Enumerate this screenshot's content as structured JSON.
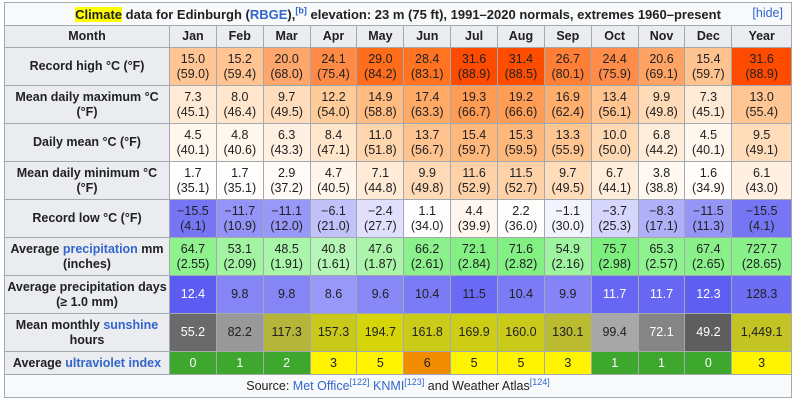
{
  "caption": {
    "highlight": "Climate",
    "text_before_link": " data for Edinburgh (",
    "link": "RBGE",
    "text_after_link": "),",
    "sup": "[b]",
    "text_rest": " elevation: 23 m (75 ft), 1991–2020 normals, extremes 1960–present",
    "hide": "[hide]"
  },
  "columns": [
    "Month",
    "Jan",
    "Feb",
    "Mar",
    "Apr",
    "May",
    "Jun",
    "Jul",
    "Aug",
    "Sep",
    "Oct",
    "Nov",
    "Dec",
    "Year"
  ],
  "rows": [
    {
      "label": "Record high °C (°F)",
      "link": "",
      "type": "two",
      "cells": [
        [
          "15.0",
          "(59.0)"
        ],
        [
          "15.2",
          "(59.4)"
        ],
        [
          "20.0",
          "(68.0)"
        ],
        [
          "24.1",
          "(75.4)"
        ],
        [
          "29.0",
          "(84.2)"
        ],
        [
          "28.4",
          "(83.1)"
        ],
        [
          "31.6",
          "(88.9)"
        ],
        [
          "31.4",
          "(88.5)"
        ],
        [
          "26.7",
          "(80.1)"
        ],
        [
          "24.4",
          "(75.9)"
        ],
        [
          "20.6",
          "(69.1)"
        ],
        [
          "15.4",
          "(59.7)"
        ],
        [
          "31.6",
          "(88.9)"
        ]
      ],
      "colors": [
        "#ffc594",
        "#ffc491",
        "#ffa66c",
        "#ff8a46",
        "#ff6d1a",
        "#ff7321",
        "#ff4b00",
        "#ff4d00",
        "#ff7f36",
        "#ff8c49",
        "#ffa364",
        "#ffc38f",
        "#ff4b00"
      ],
      "dark": [
        false,
        false,
        false,
        false,
        false,
        false,
        false,
        false,
        false,
        false,
        false,
        false,
        false
      ]
    },
    {
      "label": "Mean daily maximum °C (°F)",
      "link": "",
      "type": "two",
      "cells": [
        [
          "7.3",
          "(45.1)"
        ],
        [
          "8.0",
          "(46.4)"
        ],
        [
          "9.7",
          "(49.5)"
        ],
        [
          "12.2",
          "(54.0)"
        ],
        [
          "14.9",
          "(58.8)"
        ],
        [
          "17.4",
          "(63.3)"
        ],
        [
          "19.3",
          "(66.7)"
        ],
        [
          "19.2",
          "(66.6)"
        ],
        [
          "16.9",
          "(62.4)"
        ],
        [
          "13.4",
          "(56.1)"
        ],
        [
          "9.9",
          "(49.8)"
        ],
        [
          "7.3",
          "(45.1)"
        ],
        [
          "13.0",
          "(55.4)"
        ]
      ],
      "colors": [
        "#ffead5",
        "#ffe6cc",
        "#ffdcbb",
        "#ffcc99",
        "#ffbb80",
        "#ffaa66",
        "#ff9b53",
        "#ff9c55",
        "#ffae6c",
        "#ffc48f",
        "#ffdab7",
        "#ffead5",
        "#ffc694"
      ],
      "dark": [
        false,
        false,
        false,
        false,
        false,
        false,
        false,
        false,
        false,
        false,
        false,
        false,
        false
      ]
    },
    {
      "label": "Daily mean °C (°F)",
      "link": "",
      "type": "two",
      "cells": [
        [
          "4.5",
          "(40.1)"
        ],
        [
          "4.8",
          "(40.6)"
        ],
        [
          "6.3",
          "(43.3)"
        ],
        [
          "8.4",
          "(47.1)"
        ],
        [
          "11.0",
          "(51.8)"
        ],
        [
          "13.7",
          "(56.7)"
        ],
        [
          "15.4",
          "(59.7)"
        ],
        [
          "15.3",
          "(59.5)"
        ],
        [
          "13.3",
          "(55.9)"
        ],
        [
          "10.0",
          "(50.0)"
        ],
        [
          "6.8",
          "(44.2)"
        ],
        [
          "4.5",
          "(40.1)"
        ],
        [
          "9.5",
          "(49.1)"
        ]
      ],
      "colors": [
        "#fff7ee",
        "#fff6ec",
        "#fff0e1",
        "#ffe5ca",
        "#ffd5ad",
        "#ffc38f",
        "#ffb87b",
        "#ffb87c",
        "#ffc692",
        "#ffd9b3",
        "#ffeddb",
        "#fff7ee",
        "#ffdcba"
      ],
      "dark": [
        false,
        false,
        false,
        false,
        false,
        false,
        false,
        false,
        false,
        false,
        false,
        false,
        false
      ]
    },
    {
      "label": "Mean daily minimum °C (°F)",
      "link": "",
      "type": "two",
      "cells": [
        [
          "1.7",
          "(35.1)"
        ],
        [
          "1.7",
          "(35.1)"
        ],
        [
          "2.9",
          "(37.2)"
        ],
        [
          "4.7",
          "(40.5)"
        ],
        [
          "7.1",
          "(44.8)"
        ],
        [
          "9.9",
          "(49.8)"
        ],
        [
          "11.6",
          "(52.9)"
        ],
        [
          "11.5",
          "(52.7)"
        ],
        [
          "9.7",
          "(49.5)"
        ],
        [
          "6.7",
          "(44.1)"
        ],
        [
          "3.8",
          "(38.8)"
        ],
        [
          "1.6",
          "(34.9)"
        ],
        [
          "6.1",
          "(43.0)"
        ]
      ],
      "colors": [
        "#fffdfb",
        "#fffdfb",
        "#fffaf5",
        "#fff5eb",
        "#ffebd6",
        "#ffdab7",
        "#ffd1a6",
        "#ffd1a7",
        "#ffdcba",
        "#ffeddb",
        "#fff8f0",
        "#fffcfa",
        "#fff0e2"
      ],
      "dark": [
        false,
        false,
        false,
        false,
        false,
        false,
        false,
        false,
        false,
        false,
        false,
        false,
        false
      ]
    },
    {
      "label": "Record low °C (°F)",
      "link": "",
      "type": "two",
      "cells": [
        [
          "−15.5",
          "(4.1)"
        ],
        [
          "−11.7",
          "(10.9)"
        ],
        [
          "−11.1",
          "(12.0)"
        ],
        [
          "−6.1",
          "(21.0)"
        ],
        [
          "−2.4",
          "(27.7)"
        ],
        [
          "1.1",
          "(34.0)"
        ],
        [
          "4.4",
          "(39.9)"
        ],
        [
          "2.2",
          "(36.0)"
        ],
        [
          "−1.1",
          "(30.0)"
        ],
        [
          "−3.7",
          "(25.3)"
        ],
        [
          "−8.3",
          "(17.1)"
        ],
        [
          "−11.5",
          "(11.3)"
        ],
        [
          "−15.5",
          "(4.1)"
        ]
      ],
      "colors": [
        "#7676f5",
        "#9494f8",
        "#9898f8",
        "#c2c2fb",
        "#e0e0fd",
        "#fdfdff",
        "#fff7ef",
        "#fffdfb",
        "#f3f3fe",
        "#d6d6fc",
        "#b0b0f9",
        "#9595f8",
        "#7676f5"
      ],
      "dark": [
        false,
        false,
        false,
        false,
        false,
        false,
        false,
        false,
        false,
        false,
        false,
        false,
        false
      ]
    },
    {
      "label": "Average ",
      "link": "precipitation",
      "label2": " mm (inches)",
      "type": "two",
      "cells": [
        [
          "64.7",
          "(2.55)"
        ],
        [
          "53.1",
          "(2.09)"
        ],
        [
          "48.5",
          "(1.91)"
        ],
        [
          "40.8",
          "(1.61)"
        ],
        [
          "47.6",
          "(1.87)"
        ],
        [
          "66.2",
          "(2.61)"
        ],
        [
          "72.1",
          "(2.84)"
        ],
        [
          "71.6",
          "(2.82)"
        ],
        [
          "54.9",
          "(2.16)"
        ],
        [
          "75.7",
          "(2.98)"
        ],
        [
          "65.3",
          "(2.57)"
        ],
        [
          "67.4",
          "(2.65)"
        ],
        [
          "727.7",
          "(28.65)"
        ]
      ],
      "colors": [
        "#8ff28f",
        "#a2f4a2",
        "#a9f5a9",
        "#b6f6b6",
        "#aaf5aa",
        "#8cf18c",
        "#83f083",
        "#83f083",
        "#9ff49f",
        "#7eef7e",
        "#8ef28e",
        "#8af18a",
        "#8af18a"
      ],
      "dark": [
        false,
        false,
        false,
        false,
        false,
        false,
        false,
        false,
        false,
        false,
        false,
        false,
        false
      ]
    },
    {
      "label": "Average precipitation days (≥ 1.0 mm)",
      "link": "",
      "type": "two",
      "cells": [
        [
          "12.4"
        ],
        [
          "9.8"
        ],
        [
          "9.8"
        ],
        [
          "8.6"
        ],
        [
          "9.6"
        ],
        [
          "10.4"
        ],
        [
          "11.5"
        ],
        [
          "10.4"
        ],
        [
          "9.9"
        ],
        [
          "11.7"
        ],
        [
          "11.7"
        ],
        [
          "12.3"
        ],
        [
          "128.3"
        ]
      ],
      "colors": [
        "#5c5cf3",
        "#8585f6",
        "#8585f6",
        "#9898f8",
        "#8888f7",
        "#7b7bf6",
        "#6a6af4",
        "#7b7bf6",
        "#8484f6",
        "#6767f4",
        "#6767f4",
        "#5e5ef3",
        "#6e6ef5"
      ],
      "dark": [
        true,
        false,
        false,
        false,
        false,
        false,
        false,
        false,
        false,
        true,
        true,
        true,
        false
      ]
    },
    {
      "label": "Mean monthly ",
      "link": "sunshine",
      "label2": " hours",
      "type": "two",
      "cells": [
        [
          "55.2"
        ],
        [
          "82.2"
        ],
        [
          "117.3"
        ],
        [
          "157.3"
        ],
        [
          "194.7"
        ],
        [
          "161.8"
        ],
        [
          "169.9"
        ],
        [
          "160.0"
        ],
        [
          "130.1"
        ],
        [
          "99.4"
        ],
        [
          "72.1"
        ],
        [
          "49.2"
        ],
        [
          "1,449.1"
        ]
      ],
      "colors": [
        "#6a6a6a",
        "#999999",
        "#b5b53a",
        "#c9c91c",
        "#d5d509",
        "#cbcb19",
        "#cdcd15",
        "#caca1a",
        "#bbbb31",
        "#a8a8a8",
        "#858585",
        "#5e5e5e",
        "#c3c324"
      ],
      "dark": [
        true,
        false,
        false,
        false,
        false,
        false,
        false,
        false,
        false,
        false,
        true,
        true,
        false
      ]
    },
    {
      "label": "Average ",
      "link": "ultraviolet index",
      "label2": "",
      "type": "one",
      "cells": [
        [
          "0"
        ],
        [
          "1"
        ],
        [
          "2"
        ],
        [
          "3"
        ],
        [
          "5"
        ],
        [
          "6"
        ],
        [
          "5"
        ],
        [
          "5"
        ],
        [
          "3"
        ],
        [
          "1"
        ],
        [
          "1"
        ],
        [
          "0"
        ],
        [
          "3"
        ]
      ],
      "colors": [
        "#3ea72d",
        "#3ea72d",
        "#3ea72d",
        "#fff300",
        "#fff300",
        "#f18b00",
        "#fff300",
        "#fff300",
        "#fff300",
        "#3ea72d",
        "#3ea72d",
        "#3ea72d",
        "#fff300"
      ],
      "dark": [
        true,
        true,
        true,
        false,
        false,
        false,
        false,
        false,
        false,
        true,
        true,
        true,
        false
      ]
    }
  ],
  "source": {
    "prefix": "Source: ",
    "link1": "Met Office",
    "sup1": "[122]",
    "link2": "KNMI",
    "sup2": "[123]",
    "mid": " and Weather Atlas",
    "sup3": "[124]"
  }
}
